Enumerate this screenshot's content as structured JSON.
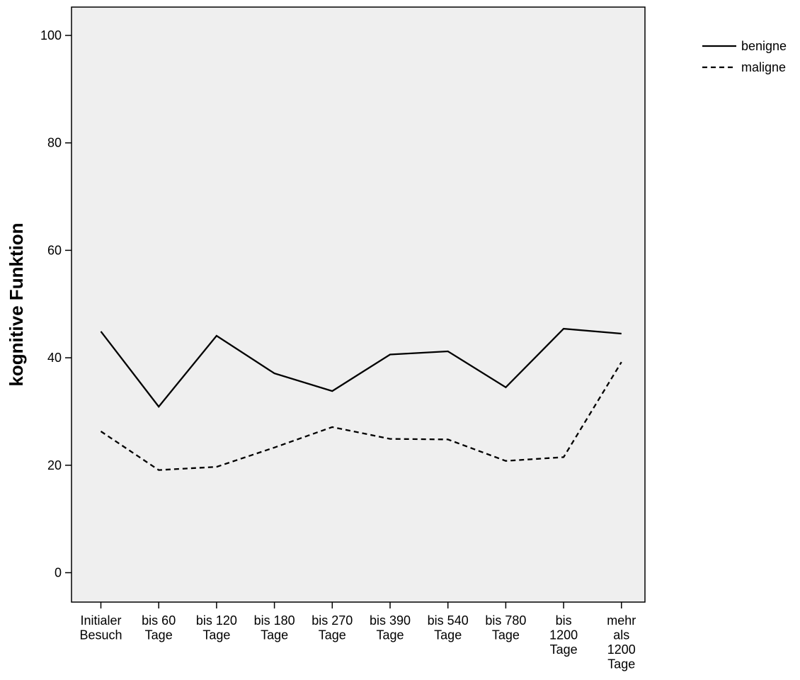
{
  "chart_data": {
    "type": "line",
    "title": "",
    "xlabel": "",
    "ylabel": "kognitive Funktion",
    "categories": [
      [
        "Initialer",
        "Besuch"
      ],
      [
        "bis 60",
        "Tage"
      ],
      [
        "bis 120",
        "Tage"
      ],
      [
        "bis 180",
        "Tage"
      ],
      [
        "bis 270",
        "Tage"
      ],
      [
        "bis 390",
        "Tage"
      ],
      [
        "bis 540",
        "Tage"
      ],
      [
        "bis 780",
        "Tage"
      ],
      [
        "bis",
        "1200",
        "Tage"
      ],
      [
        "mehr",
        "als",
        "1200",
        "Tage"
      ]
    ],
    "series": [
      {
        "name": "benigne",
        "style": "solid",
        "values": [
          44.9,
          30.9,
          44.1,
          37.1,
          33.8,
          40.6,
          41.2,
          34.5,
          45.4,
          44.5
        ]
      },
      {
        "name": "maligne",
        "style": "dashed",
        "values": [
          26.3,
          19.1,
          19.7,
          23.3,
          27.1,
          24.9,
          24.8,
          20.8,
          21.5,
          39.2
        ]
      }
    ],
    "ylim": [
      -6,
      106
    ],
    "yticks": [
      0,
      20,
      40,
      60,
      80,
      100
    ],
    "grid": false,
    "legend_position": "top-right",
    "colors": {
      "plot_background": "#efefef",
      "line": "#000000"
    }
  }
}
